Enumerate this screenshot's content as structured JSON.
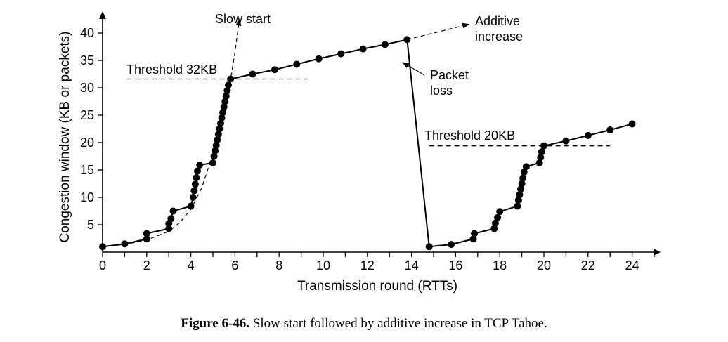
{
  "chart_data": {
    "type": "line",
    "xlabel": "Transmission round (RTTs)",
    "ylabel": "Congestion window (KB or packets)",
    "xlim": [
      0,
      25
    ],
    "ylim": [
      0,
      42
    ],
    "x_ticks": [
      0,
      2,
      4,
      6,
      8,
      10,
      12,
      14,
      16,
      18,
      20,
      22,
      24
    ],
    "y_ticks": [
      5,
      10,
      15,
      20,
      25,
      30,
      35,
      40
    ],
    "grid": false,
    "series": [
      {
        "points": [
          [
            0,
            1
          ],
          [
            1,
            1.5
          ],
          [
            2,
            2.4
          ],
          [
            2,
            3.4
          ],
          [
            3,
            4.3
          ],
          [
            3,
            5.2
          ],
          [
            3.1,
            6.1
          ],
          [
            3.2,
            7.5
          ],
          [
            4,
            8.4
          ],
          [
            4.1,
            10
          ],
          [
            4.15,
            11.2
          ],
          [
            4.2,
            12.4
          ],
          [
            4.25,
            13.6
          ],
          [
            4.3,
            14.8
          ],
          [
            4.4,
            15.9
          ],
          [
            5,
            16.3
          ],
          [
            5.05,
            17.5
          ],
          [
            5.1,
            18.5
          ],
          [
            5.15,
            19.5
          ],
          [
            5.2,
            20.5
          ],
          [
            5.25,
            21.5
          ],
          [
            5.3,
            22.5
          ],
          [
            5.35,
            23.5
          ],
          [
            5.4,
            24.5
          ],
          [
            5.45,
            25.5
          ],
          [
            5.5,
            26.5
          ],
          [
            5.55,
            27.5
          ],
          [
            5.6,
            28.5
          ],
          [
            5.65,
            29.5
          ],
          [
            5.7,
            30.5
          ],
          [
            5.8,
            31.6
          ],
          [
            6.8,
            32.5
          ],
          [
            7.8,
            33.3
          ],
          [
            8.8,
            34.3
          ],
          [
            9.8,
            35.3
          ],
          [
            10.8,
            36.2
          ],
          [
            11.8,
            37.1
          ],
          [
            12.8,
            37.9
          ],
          [
            13.8,
            38.8
          ],
          [
            14.8,
            1
          ],
          [
            15.8,
            1.4
          ],
          [
            16.8,
            2.4
          ],
          [
            16.85,
            3.4
          ],
          [
            17.75,
            4.3
          ],
          [
            17.8,
            5.3
          ],
          [
            17.9,
            6.3
          ],
          [
            18,
            7.4
          ],
          [
            18.8,
            8.4
          ],
          [
            18.85,
            9.5
          ],
          [
            18.9,
            10.5
          ],
          [
            18.95,
            11.5
          ],
          [
            19,
            12.5
          ],
          [
            19.05,
            13.5
          ],
          [
            19.1,
            14.6
          ],
          [
            19.2,
            15.6
          ],
          [
            19.8,
            16.3
          ],
          [
            19.85,
            17.3
          ],
          [
            19.9,
            18.3
          ],
          [
            20,
            19.4
          ],
          [
            21,
            20.3
          ],
          [
            22,
            21.3
          ],
          [
            23,
            22.3
          ],
          [
            24,
            23.4
          ]
        ]
      }
    ],
    "slow_start_curve": [
      [
        0,
        1
      ],
      [
        1,
        1.4
      ],
      [
        2,
        2.2
      ],
      [
        3,
        3.8
      ],
      [
        3.5,
        5.4
      ],
      [
        4,
        7.8
      ],
      [
        4.5,
        11.8
      ],
      [
        5,
        18
      ],
      [
        5.4,
        25.2
      ],
      [
        5.8,
        31.5
      ],
      [
        6,
        36.5
      ],
      [
        6.2,
        42.5
      ]
    ],
    "additive_increase_extension": [
      [
        13.8,
        38.8
      ],
      [
        16.6,
        41.6
      ]
    ],
    "thresholds": [
      {
        "label": "Threshold 32KB",
        "y": 31.6,
        "x_from": 1.1,
        "x_to": 9.3
      },
      {
        "label": "Threshold 20KB",
        "y": 19.4,
        "x_from": 14.8,
        "x_to": 23
      }
    ],
    "annotations": {
      "slow_start": "Slow start",
      "additive_line1": "Additive",
      "additive_line2": "increase",
      "packet_line1": "Packet",
      "packet_line2": "loss"
    }
  },
  "caption": {
    "label": "Figure 6-46.",
    "text": "Slow start followed by additive increase in TCP Tahoe."
  }
}
